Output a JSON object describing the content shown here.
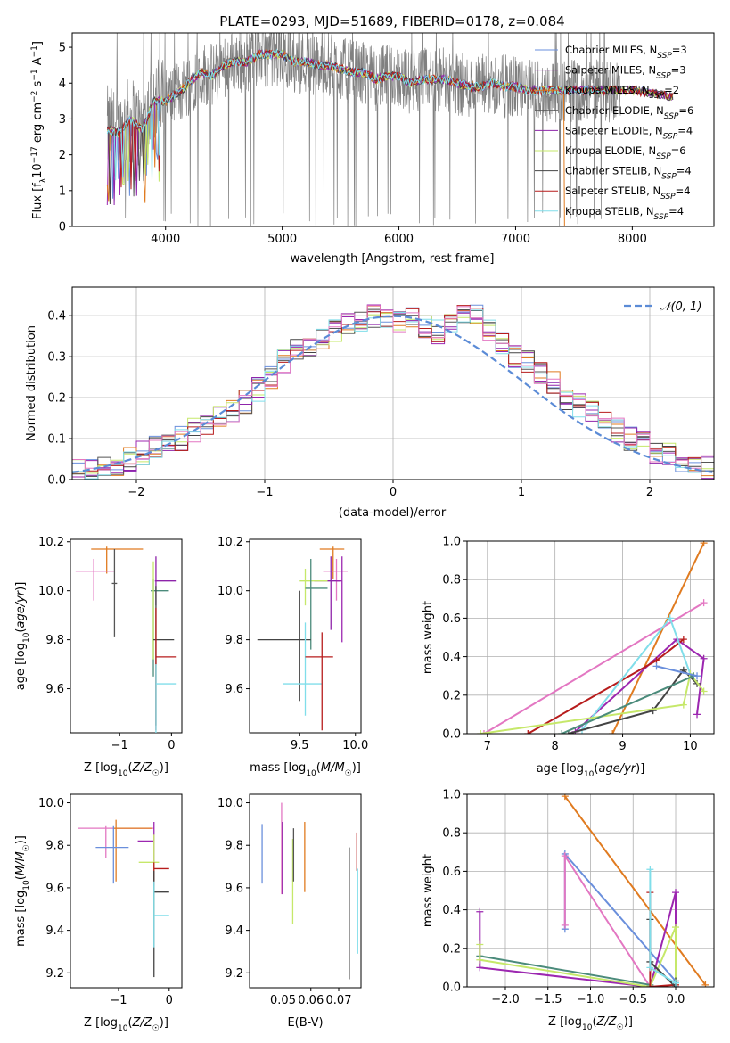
{
  "colors": {
    "Chabrier MILES": "#6a8fdc",
    "Salpeter MILES": "#9c27b0",
    "Kroupa MILES": "#e07b20",
    "Chabrier ELODIE": "#555555",
    "Salpeter ELODIE": "#8e24aa",
    "Kroupa ELODIE": "#c6e86a",
    "Chabrier STELIB": "#444444",
    "Salpeter STELIB": "#b71c1c",
    "Kroupa STELIB": "#80deea",
    "extra_pink": "#e377c2",
    "extra_teal": "#4b8b7b",
    "normal": "#5b8bd6",
    "grid": "#b0b0b0"
  },
  "chart_data": [
    {
      "id": "spectrum",
      "type": "line",
      "title": "PLATE=0293, MJD=51689, FIBERID=0178, z=0.084",
      "xlabel": "wavelength [Angstrom, rest frame]",
      "ylabel_parts": [
        "Flux [f",
        "λ",
        "10",
        "−17",
        " erg cm",
        "−2",
        " s",
        "−1",
        " A",
        "−1",
        "]"
      ],
      "xlim": [
        3200,
        8700
      ],
      "ylim": [
        0,
        5.4
      ],
      "xticks": [
        "4000",
        "5000",
        "6000",
        "7000",
        "8000"
      ],
      "yticks": [
        "0",
        "1",
        "2",
        "3",
        "4",
        "5"
      ],
      "grid": false,
      "legend_position": "top-right",
      "legend": [
        {
          "label": "Chabrier MILES, N",
          "sub": "SSP",
          "suffix": "=3",
          "color": "#6a8fdc"
        },
        {
          "label": "Salpeter MILES, N",
          "sub": "SSP",
          "suffix": "=3",
          "color": "#9c27b0"
        },
        {
          "label": "Kroupa MILES, N",
          "sub": "SSP",
          "suffix": "=2",
          "color": "#e07b20"
        },
        {
          "label": "Chabrier ELODIE, N",
          "sub": "SSP",
          "suffix": "=6",
          "color": "#555555"
        },
        {
          "label": "Salpeter ELODIE, N",
          "sub": "SSP",
          "suffix": "=4",
          "color": "#8e24aa"
        },
        {
          "label": "Kroupa ELODIE, N",
          "sub": "SSP",
          "suffix": "=6",
          "color": "#c6e86a"
        },
        {
          "label": "Chabrier STELIB, N",
          "sub": "SSP",
          "suffix": "=4",
          "color": "#444444"
        },
        {
          "label": "Salpeter STELIB, N",
          "sub": "SSP",
          "suffix": "=4",
          "color": "#b71c1c"
        },
        {
          "label": "Kroupa STELIB, N",
          "sub": "SSP",
          "suffix": "=4",
          "color": "#80deea"
        }
      ],
      "continuum": {
        "x": [
          3500,
          3600,
          3700,
          3800,
          3900,
          4000,
          4100,
          4200,
          4300,
          4400,
          4500,
          4600,
          4700,
          4800,
          4900,
          5000,
          5100,
          5200,
          5300,
          5400,
          5500,
          5600,
          5700,
          5800,
          5900,
          6000,
          6100,
          6200,
          6300,
          6400,
          6500,
          6600,
          6700,
          6800,
          6900,
          7000,
          7100,
          7200,
          7300,
          7400,
          7600,
          7800,
          8000,
          8200,
          8400
        ],
        "y": [
          2.7,
          2.6,
          3.0,
          2.7,
          3.5,
          3.5,
          3.7,
          4.0,
          4.3,
          4.2,
          4.5,
          4.6,
          4.6,
          4.8,
          4.8,
          4.8,
          4.6,
          4.6,
          4.5,
          4.5,
          4.4,
          4.3,
          4.3,
          4.1,
          4.2,
          4.2,
          4.0,
          4.1,
          4.1,
          4.1,
          4.0,
          3.9,
          3.9,
          4.0,
          3.9,
          3.9,
          3.8,
          3.8,
          3.8,
          3.8,
          3.8,
          3.8,
          3.8,
          3.7,
          3.6
        ]
      }
    },
    {
      "id": "residuals",
      "type": "step",
      "xlabel": "(data-model)/error",
      "ylabel": "Normed distribution",
      "xlim": [
        -2.5,
        2.5
      ],
      "ylim": [
        0,
        0.47
      ],
      "xticks": [
        "−2",
        "−1",
        "0",
        "1",
        "2"
      ],
      "yticks": [
        "0.0",
        "0.1",
        "0.2",
        "0.3",
        "0.4"
      ],
      "grid": true,
      "legend_position": "top-right",
      "legend": [
        {
          "label": "𝒩(0, 1)",
          "color": "#5b8bd6",
          "style": "dashed"
        }
      ],
      "bin_width": 0.1,
      "bin_start": -2.5,
      "histogram": [
        0.02,
        0.025,
        0.03,
        0.04,
        0.05,
        0.065,
        0.08,
        0.09,
        0.1,
        0.12,
        0.13,
        0.15,
        0.17,
        0.19,
        0.22,
        0.25,
        0.29,
        0.32,
        0.33,
        0.34,
        0.36,
        0.38,
        0.39,
        0.4,
        0.39,
        0.38,
        0.4,
        0.37,
        0.36,
        0.39,
        0.4,
        0.4,
        0.36,
        0.33,
        0.3,
        0.29,
        0.26,
        0.24,
        0.2,
        0.18,
        0.17,
        0.15,
        0.12,
        0.1,
        0.09,
        0.07,
        0.06,
        0.045,
        0.04,
        0.03
      ]
    },
    {
      "id": "age-vs-Z",
      "type": "errorbar",
      "xlabel": "Z [log10(Z/Z☉)]",
      "ylabel": "age  [log10(age/yr)]",
      "xlim": [
        -1.95,
        0.2
      ],
      "ylim": [
        9.42,
        10.21
      ],
      "xticks": [
        {
          "v": -1,
          "t": "−1"
        },
        {
          "v": 0,
          "t": "0"
        }
      ],
      "yticks": [
        "9.6",
        "9.8",
        "10.0",
        "10.2"
      ],
      "points": [
        {
          "x": -1.25,
          "y": 10.17,
          "xl": 0.3,
          "xr": 0.7,
          "yd": 0.1,
          "yu": 0.01,
          "color": "#e07b20"
        },
        {
          "x": -1.5,
          "y": 10.08,
          "xl": 0.35,
          "xr": 0.4,
          "yd": 0.12,
          "yu": 0.05,
          "color": "#e377c2"
        },
        {
          "x": -1.1,
          "y": 10.03,
          "xl": 0.05,
          "xr": 0.05,
          "yd": 0.22,
          "yu": 0.14,
          "color": "#555555"
        },
        {
          "x": -0.3,
          "y": 10.04,
          "xl": 0.02,
          "xr": 0.4,
          "yd": 0.1,
          "yu": 0.1,
          "color": "#8e24aa"
        },
        {
          "x": -0.35,
          "y": 10.0,
          "xl": 0.05,
          "xr": 0.3,
          "yd": 0.35,
          "yu": 0.05,
          "color": "#4b8b7b"
        },
        {
          "x": -0.35,
          "y": 10.02,
          "xl": 0.0,
          "xr": 0.0,
          "yd": 0.3,
          "yu": 0.1,
          "color": "#c6e86a"
        },
        {
          "x": -0.3,
          "y": 9.8,
          "xl": 0.05,
          "xr": 0.35,
          "yd": 0.35,
          "yu": 0.22,
          "color": "#444444"
        },
        {
          "x": -0.3,
          "y": 9.73,
          "xl": 0.0,
          "xr": 0.4,
          "yd": 0.3,
          "yu": 0.2,
          "color": "#b71c1c"
        },
        {
          "x": -0.3,
          "y": 9.62,
          "xl": 0.0,
          "xr": 0.4,
          "yd": 0.3,
          "yu": 0.08,
          "color": "#80deea"
        }
      ]
    },
    {
      "id": "age-vs-mass",
      "type": "errorbar",
      "xlabel": "mass [log10(M/M☉)]",
      "xlim": [
        9.05,
        10.05
      ],
      "ylim": [
        9.42,
        10.21
      ],
      "xticks": [
        {
          "v": 9.5,
          "t": "9.5"
        },
        {
          "v": 10.0,
          "t": "10.0"
        }
      ],
      "yticks": [
        "9.6",
        "9.8",
        "10.0",
        "10.2"
      ],
      "points": [
        {
          "x": 9.8,
          "y": 10.17,
          "xl": 0.12,
          "xr": 0.1,
          "yd": 0.12,
          "yu": 0.01,
          "color": "#e07b20"
        },
        {
          "x": 9.83,
          "y": 10.08,
          "xl": 0.12,
          "xr": 0.1,
          "yd": 0.12,
          "yu": 0.05,
          "color": "#e377c2"
        },
        {
          "x": 9.78,
          "y": 10.04,
          "xl": 0.15,
          "xr": 0.08,
          "yd": 0.2,
          "yu": 0.1,
          "color": "#8e24aa"
        },
        {
          "x": 9.55,
          "y": 10.04,
          "xl": 0.05,
          "xr": 0.2,
          "yd": 0.1,
          "yu": 0.05,
          "color": "#c6e86a"
        },
        {
          "x": 9.6,
          "y": 10.01,
          "xl": 0.05,
          "xr": 0.15,
          "yd": 0.25,
          "yu": 0.12,
          "color": "#4b8b7b"
        },
        {
          "x": 9.5,
          "y": 9.8,
          "xl": 0.38,
          "xr": 0.1,
          "yd": 0.25,
          "yu": 0.2,
          "color": "#444444"
        },
        {
          "x": 9.55,
          "y": 9.62,
          "xl": 0.2,
          "xr": 0.15,
          "yd": 0.13,
          "yu": 0.25,
          "color": "#80deea"
        },
        {
          "x": 9.7,
          "y": 9.73,
          "xl": 0.15,
          "xr": 0.1,
          "yd": 0.3,
          "yu": 0.1,
          "color": "#b71c1c"
        },
        {
          "x": 9.88,
          "y": 10.04,
          "xl": 0.05,
          "xr": 0.0,
          "yd": 0.25,
          "yu": 0.1,
          "color": "#9c27b0"
        }
      ]
    },
    {
      "id": "weight-vs-age",
      "type": "line",
      "xlabel": "age  [log10(age/yr)]",
      "ylabel": "mass weight",
      "xlim": [
        6.7,
        10.35
      ],
      "ylim": [
        0,
        1.0
      ],
      "xticks": [
        {
          "v": 7,
          "t": "7"
        },
        {
          "v": 8,
          "t": "8"
        },
        {
          "v": 9,
          "t": "9"
        },
        {
          "v": 10,
          "t": "10"
        }
      ],
      "yticks": [
        "0.0",
        "0.2",
        "0.4",
        "0.6",
        "0.8",
        "1.0"
      ],
      "grid": true,
      "series": [
        {
          "color": "#e07b20",
          "x": [
            8.85,
            10.2
          ],
          "y": [
            0.0,
            0.99
          ]
        },
        {
          "color": "#e377c2",
          "x": [
            6.95,
            10.2
          ],
          "y": [
            0.0,
            0.68
          ]
        },
        {
          "color": "#9c27b0",
          "x": [
            8.3,
            9.8,
            10.2,
            10.1
          ],
          "y": [
            0.01,
            0.49,
            0.39,
            0.1
          ]
        },
        {
          "color": "#b71c1c",
          "x": [
            7.6,
            9.5,
            9.9
          ],
          "y": [
            0.0,
            0.38,
            0.49
          ]
        },
        {
          "color": "#80deea",
          "x": [
            8.4,
            9.7,
            10.0
          ],
          "y": [
            0.02,
            0.6,
            0.31
          ]
        },
        {
          "color": "#444444",
          "x": [
            8.2,
            9.45,
            9.9,
            10.1
          ],
          "y": [
            0.0,
            0.12,
            0.33,
            0.26
          ]
        },
        {
          "color": "#c6e86a",
          "x": [
            6.9,
            9.9,
            10.0,
            10.2
          ],
          "y": [
            0.0,
            0.15,
            0.31,
            0.22
          ]
        },
        {
          "color": "#4b8b7b",
          "x": [
            8.1,
            10.05
          ],
          "y": [
            0.0,
            0.3
          ]
        },
        {
          "color": "#6a8fdc",
          "x": [
            9.5,
            10.1
          ],
          "y": [
            0.35,
            0.3
          ]
        }
      ]
    },
    {
      "id": "mass-vs-Z",
      "type": "errorbar",
      "xlabel": "Z [log10(Z/Z☉)]",
      "ylabel": "mass [log10(M/M☉)]",
      "xlim": [
        -1.95,
        0.25
      ],
      "ylim": [
        9.13,
        10.04
      ],
      "xticks": [
        {
          "v": -1,
          "t": "−1"
        },
        {
          "v": 0,
          "t": "0"
        }
      ],
      "yticks": [
        "9.2",
        "9.4",
        "9.6",
        "9.8",
        "10.0"
      ],
      "points": [
        {
          "x": -1.25,
          "y": 9.88,
          "xl": 0.55,
          "xr": 0.95,
          "yd": 0.14,
          "yu": 0.01,
          "color": "#e377c2"
        },
        {
          "x": -1.05,
          "y": 9.88,
          "xl": 0.05,
          "xr": 0.7,
          "yd": 0.25,
          "yu": 0.04,
          "color": "#e07b20"
        },
        {
          "x": -1.1,
          "y": 9.79,
          "xl": 0.35,
          "xr": 0.3,
          "yd": 0.17,
          "yu": 0.1,
          "color": "#6a8fdc"
        },
        {
          "x": -0.3,
          "y": 9.82,
          "xl": 0.32,
          "xr": 0.0,
          "yd": 0.1,
          "yu": 0.09,
          "color": "#9c27b0"
        },
        {
          "x": -0.3,
          "y": 9.72,
          "xl": 0.3,
          "xr": 0.1,
          "yd": 0.27,
          "yu": 0.13,
          "color": "#c6e86a"
        },
        {
          "x": -0.3,
          "y": 9.69,
          "xl": 0.0,
          "xr": 0.3,
          "yd": 0.08,
          "yu": 0.03,
          "color": "#b71c1c"
        },
        {
          "x": -0.3,
          "y": 9.58,
          "xl": 0.0,
          "xr": 0.3,
          "yd": 0.4,
          "yu": 0.1,
          "color": "#444444"
        },
        {
          "x": -0.3,
          "y": 9.47,
          "xl": 0.0,
          "xr": 0.3,
          "yd": 0.15,
          "yu": 0.16,
          "color": "#80deea"
        }
      ]
    },
    {
      "id": "mass-vs-ebv",
      "type": "errorbar",
      "xlabel": "E(B-V)",
      "xlim": [
        0.038,
        0.078
      ],
      "ylim": [
        9.13,
        10.04
      ],
      "xticks": [
        {
          "v": 0.05,
          "t": "0.05"
        },
        {
          "v": 0.06,
          "t": "0.06"
        },
        {
          "v": 0.07,
          "t": "0.07"
        }
      ],
      "yticks": [
        "9.2",
        "9.4",
        "9.6",
        "9.8",
        "10.0"
      ],
      "points": [
        {
          "x": 0.0425,
          "y": 9.76,
          "xl": 0,
          "xr": 0,
          "yd": 0.14,
          "yu": 0.14,
          "color": "#6a8fdc"
        },
        {
          "x": 0.0495,
          "y": 9.75,
          "xl": 0,
          "xr": 0,
          "yd": 0.18,
          "yu": 0.25,
          "color": "#e377c2"
        },
        {
          "x": 0.0498,
          "y": 9.74,
          "xl": 0,
          "xr": 0,
          "yd": 0.17,
          "yu": 0.17,
          "color": "#8e24aa"
        },
        {
          "x": 0.0535,
          "y": 9.63,
          "xl": 0,
          "xr": 0,
          "yd": 0.2,
          "yu": 0.2,
          "color": "#c6e86a"
        },
        {
          "x": 0.0538,
          "y": 9.73,
          "xl": 0,
          "xr": 0,
          "yd": 0.1,
          "yu": 0.15,
          "color": "#555555"
        },
        {
          "x": 0.0578,
          "y": 9.74,
          "xl": 0,
          "xr": 0,
          "yd": 0.16,
          "yu": 0.17,
          "color": "#e07b20"
        },
        {
          "x": 0.0738,
          "y": 9.45,
          "xl": 0,
          "xr": 0,
          "yd": 0.28,
          "yu": 0.34,
          "color": "#444444"
        },
        {
          "x": 0.0765,
          "y": 9.77,
          "xl": 0,
          "xr": 0,
          "yd": 0.09,
          "yu": 0.09,
          "color": "#b71c1c"
        },
        {
          "x": 0.0768,
          "y": 9.49,
          "xl": 0,
          "xr": 0,
          "yd": 0.2,
          "yu": 0.2,
          "color": "#80deea"
        }
      ]
    },
    {
      "id": "weight-vs-Z",
      "type": "line",
      "xlabel": "Z [log10(Z/Z☉)]",
      "ylabel": "mass weight",
      "xlim": [
        -2.45,
        0.45
      ],
      "ylim": [
        0,
        1.0
      ],
      "xticks": [
        {
          "v": -2.0,
          "t": "−2.0"
        },
        {
          "v": -1.5,
          "t": "−1.5"
        },
        {
          "v": -1.0,
          "t": "−1.0"
        },
        {
          "v": -0.5,
          "t": "−0.5"
        },
        {
          "v": 0.0,
          "t": "0.0"
        }
      ],
      "yticks": [
        "0.0",
        "0.2",
        "0.4",
        "0.6",
        "0.8",
        "1.0"
      ],
      "grid": true,
      "series": [
        {
          "color": "#e07b20",
          "x": [
            -1.3,
            0.35
          ],
          "y": [
            0.99,
            0.01
          ]
        },
        {
          "color": "#6a8fdc",
          "x": [
            -1.3,
            -1.3,
            0.0
          ],
          "y": [
            0.3,
            0.69,
            0.03
          ]
        },
        {
          "color": "#e377c2",
          "x": [
            -1.3,
            -1.3,
            -0.3
          ],
          "y": [
            0.32,
            0.68,
            0.0
          ]
        },
        {
          "color": "#9c27b0",
          "x": [
            -2.3,
            -2.3,
            -0.3,
            0.0,
            0.0
          ],
          "y": [
            0.39,
            0.1,
            0.0,
            0.49,
            0.0
          ]
        },
        {
          "color": "#4b8b7b",
          "x": [
            -2.3,
            -0.3
          ],
          "y": [
            0.16,
            0.01
          ]
        },
        {
          "color": "#c6e86a",
          "x": [
            -2.3,
            -2.3,
            -0.3,
            0.0,
            0.0
          ],
          "y": [
            0.22,
            0.14,
            0.0,
            0.31,
            0.01
          ]
        },
        {
          "color": "#b71c1c",
          "x": [
            -0.3,
            -0.3,
            0.0
          ],
          "y": [
            0.49,
            0.0,
            0.01
          ]
        },
        {
          "color": "#444444",
          "x": [
            -0.3,
            -0.3,
            0.0,
            0.0
          ],
          "y": [
            0.35,
            0.13,
            0.0,
            0.03
          ]
        },
        {
          "color": "#80deea",
          "x": [
            -0.3,
            -0.3,
            0.0
          ],
          "y": [
            0.61,
            0.1,
            0.02
          ]
        }
      ]
    }
  ]
}
